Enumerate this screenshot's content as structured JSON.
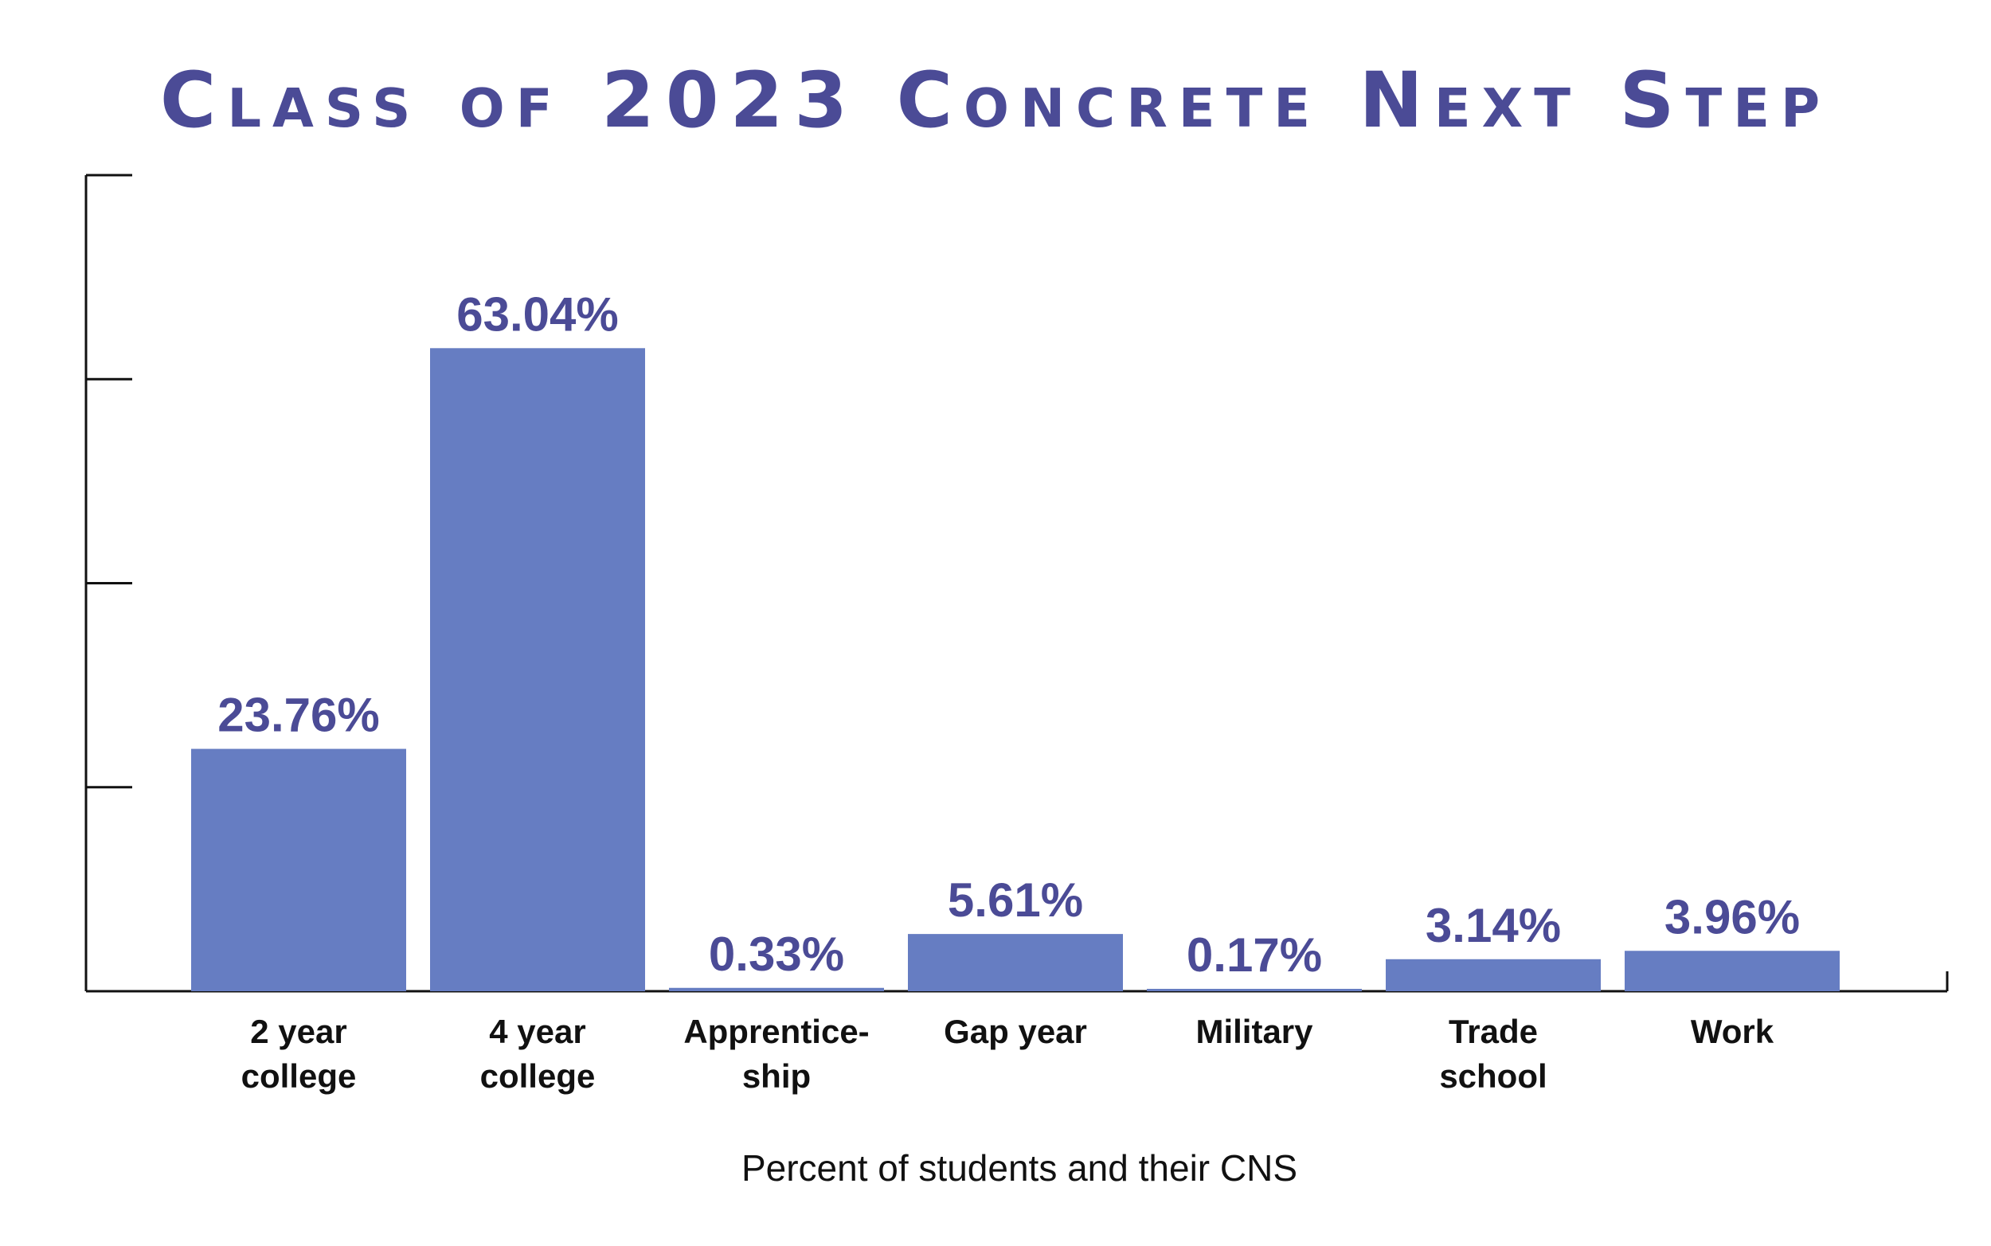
{
  "chart_data": {
    "type": "bar",
    "title": "Class of 2023 Concrete Next Step",
    "xlabel": "Percent of students and their CNS",
    "ylabel": "",
    "categories": [
      [
        "2 year",
        "college"
      ],
      [
        "4 year",
        "college"
      ],
      [
        "Apprentice-",
        "ship"
      ],
      [
        "Gap year"
      ],
      [
        "Military"
      ],
      [
        "Trade",
        "school"
      ],
      [
        "Work"
      ]
    ],
    "values": [
      23.76,
      63.04,
      0.33,
      5.61,
      0.17,
      3.14,
      3.96
    ],
    "value_labels": [
      "23.76%",
      "63.04%",
      "0.33%",
      "5.61%",
      "0.17%",
      "3.14%",
      "3.96%"
    ],
    "ylim": [
      0,
      80
    ],
    "y_ticks": [
      0,
      20,
      40,
      60,
      80
    ],
    "y_tick_labels_shown": false,
    "grid": false,
    "legend": "none",
    "colors": {
      "bar": "#667dc2",
      "text_accent": "#4b4b96",
      "axis": "#111111"
    }
  }
}
